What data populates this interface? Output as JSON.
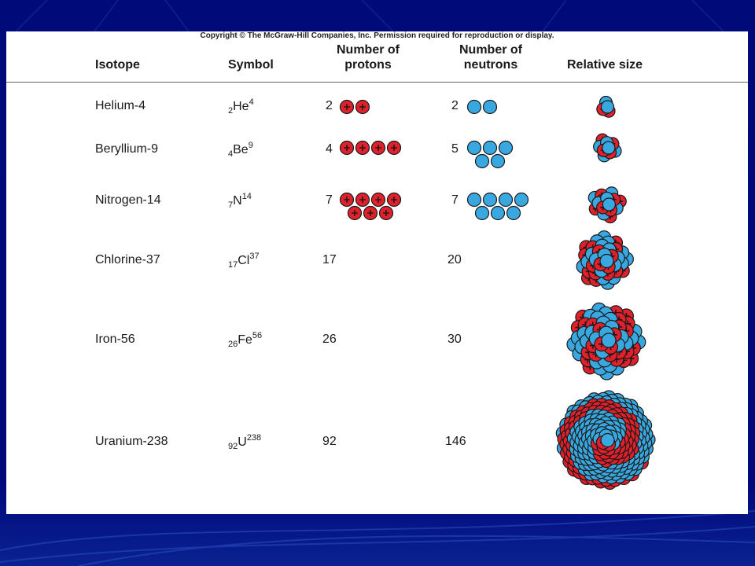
{
  "copyright": "Copyright © The McGraw-Hill Companies, Inc. Permission required for reproduction or display.",
  "headers": {
    "isotope": "Isotope",
    "symbol": "Symbol",
    "protons_line1": "Number of",
    "protons_line2": "protons",
    "neutrons_line1": "Number of",
    "neutrons_line2": "neutrons",
    "size": "Relative size"
  },
  "rows": [
    {
      "isotope": "Helium-4",
      "sym_z": "2",
      "sym_el": "He",
      "sym_a": "4",
      "protons": "2",
      "neutrons": "2"
    },
    {
      "isotope": "Beryllium-9",
      "sym_z": "4",
      "sym_el": "Be",
      "sym_a": "9",
      "protons": "4",
      "neutrons": "5"
    },
    {
      "isotope": "Nitrogen-14",
      "sym_z": "7",
      "sym_el": "N",
      "sym_a": "14",
      "protons": "7",
      "neutrons": "7"
    },
    {
      "isotope": "Chlorine-37",
      "sym_z": "17",
      "sym_el": "Cl",
      "sym_a": "37",
      "protons": "17",
      "neutrons": "20"
    },
    {
      "isotope": "Iron-56",
      "sym_z": "26",
      "sym_el": "Fe",
      "sym_a": "56",
      "protons": "26",
      "neutrons": "30"
    },
    {
      "isotope": "Uranium-238",
      "sym_z": "92",
      "sym_el": "U",
      "sym_a": "238",
      "protons": "92",
      "neutrons": "146"
    }
  ],
  "colors": {
    "proton": "#e0202a",
    "neutron": "#3aa8e0",
    "outline": "#1a1a1a",
    "background": "#00086e"
  },
  "icons": {
    "proton": "proton-plus-circle-icon",
    "neutron": "neutron-circle-icon"
  }
}
